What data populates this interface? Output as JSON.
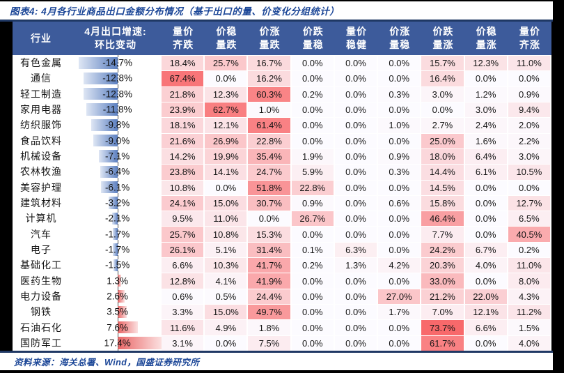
{
  "figure": {
    "title": "图表4: 4月各行业商品出口金额分布情况（基于出口的量、价变化分组统计）",
    "source": "资料来源：海关总署、Wind，国盛证券研究所"
  },
  "colors": {
    "header_bg": "#3D5B9B",
    "rule": "#1F3864",
    "accent_text": "#1B4697",
    "scale_min": "#FCFBFF",
    "scale_max": "#F8696B",
    "bar_neg": "#5B7FC0",
    "bar_neg_light": "#DEE6F4",
    "bar_pos": "#E96565",
    "bar_pos_light": "#FBE0E0"
  },
  "chart_data": {
    "type": "heatmap",
    "title": "图表4: 4月各行业商品出口金额分布情况（基于出口的量、价变化分组统计）",
    "row_header_label": "行业",
    "mom_header_line1": "4月出口增速:",
    "mom_header_line2": "环比变动",
    "columns": [
      {
        "line1": "量价",
        "line2": "齐跌"
      },
      {
        "line1": "价稳",
        "line2": "量跌"
      },
      {
        "line1": "价涨",
        "line2": "量跌"
      },
      {
        "line1": "价跌",
        "line2": "量稳"
      },
      {
        "line1": "量价",
        "line2": "稳健"
      },
      {
        "line1": "价涨",
        "line2": "量稳"
      },
      {
        "line1": "价跌",
        "line2": "量涨"
      },
      {
        "line1": "价稳",
        "line2": "量涨"
      },
      {
        "line1": "量价",
        "line2": "齐涨"
      }
    ],
    "value_range": [
      0,
      73.7
    ],
    "mom_axis_note": "blue bars = negative MoM change, red bars = positive MoM change",
    "rows": [
      {
        "industry": "有色金属",
        "mom": -14.7,
        "values": [
          18.4,
          25.7,
          16.7,
          0.0,
          0.0,
          0.0,
          15.7,
          12.3,
          11.0
        ]
      },
      {
        "industry": "通信",
        "mom": -12.8,
        "values": [
          67.4,
          0.0,
          16.2,
          0.0,
          0.0,
          0.0,
          16.4,
          0.0,
          0.0
        ]
      },
      {
        "industry": "轻工制造",
        "mom": -12.8,
        "values": [
          21.8,
          12.3,
          60.3,
          0.2,
          0.0,
          0.3,
          3.0,
          1.2,
          0.9
        ]
      },
      {
        "industry": "家用电器",
        "mom": -11.8,
        "values": [
          23.9,
          62.7,
          1.0,
          0.0,
          0.0,
          0.0,
          0.0,
          3.0,
          9.4
        ]
      },
      {
        "industry": "纺织服饰",
        "mom": -9.8,
        "values": [
          18.1,
          12.1,
          61.4,
          0.0,
          0.0,
          1.0,
          2.7,
          2.4,
          2.0
        ]
      },
      {
        "industry": "食品饮料",
        "mom": -9.0,
        "values": [
          21.6,
          26.9,
          22.8,
          0.0,
          0.0,
          0.0,
          25.0,
          1.6,
          2.2
        ]
      },
      {
        "industry": "机械设备",
        "mom": -7.1,
        "values": [
          14.2,
          19.9,
          35.4,
          1.9,
          0.0,
          0.9,
          18.0,
          6.4,
          3.0
        ]
      },
      {
        "industry": "农林牧渔",
        "mom": -6.4,
        "values": [
          23.8,
          14.1,
          24.7,
          5.9,
          0.0,
          0.3,
          14.4,
          6.1,
          10.5
        ]
      },
      {
        "industry": "美容护理",
        "mom": -6.1,
        "values": [
          10.8,
          0.0,
          51.8,
          22.8,
          0.0,
          0.0,
          14.5,
          0.0,
          0.0
        ]
      },
      {
        "industry": "建筑材料",
        "mom": -3.2,
        "values": [
          24.1,
          15.0,
          30.7,
          0.9,
          0.0,
          0.6,
          15.8,
          0.0,
          12.7
        ]
      },
      {
        "industry": "计算机",
        "mom": -2.1,
        "values": [
          9.5,
          11.0,
          0.0,
          26.7,
          0.0,
          0.0,
          46.4,
          0.0,
          6.5
        ]
      },
      {
        "industry": "汽车",
        "mom": -1.7,
        "values": [
          25.7,
          10.8,
          15.3,
          0.0,
          0.0,
          0.0,
          7.7,
          0.0,
          40.5
        ]
      },
      {
        "industry": "电子",
        "mom": -1.7,
        "values": [
          26.1,
          5.1,
          31.4,
          0.1,
          6.3,
          0.0,
          24.2,
          6.7,
          0.2
        ]
      },
      {
        "industry": "基础化工",
        "mom": -1.5,
        "values": [
          6.6,
          10.3,
          41.7,
          0.2,
          1.3,
          4.2,
          20.3,
          4.0,
          11.0
        ]
      },
      {
        "industry": "医药生物",
        "mom": 1.3,
        "values": [
          12.8,
          4.1,
          41.9,
          0.0,
          0.0,
          0.0,
          33.0,
          0.0,
          8.0
        ]
      },
      {
        "industry": "电力设备",
        "mom": 2.6,
        "values": [
          0.6,
          0.5,
          24.4,
          0.0,
          0.0,
          27.0,
          21.2,
          22.0,
          4.3
        ]
      },
      {
        "industry": "钢铁",
        "mom": 3.5,
        "values": [
          3.3,
          15.0,
          49.7,
          0.0,
          0.0,
          1.7,
          7.0,
          12.1,
          11.2
        ]
      },
      {
        "industry": "石油石化",
        "mom": 7.6,
        "values": [
          11.6,
          4.9,
          1.8,
          0.0,
          0.0,
          0.0,
          73.7,
          6.6,
          1.5
        ]
      },
      {
        "industry": "国防军工",
        "mom": 17.4,
        "values": [
          3.1,
          0.0,
          7.5,
          0.0,
          0.0,
          0.0,
          61.7,
          0.0,
          4.0
        ]
      }
    ]
  }
}
